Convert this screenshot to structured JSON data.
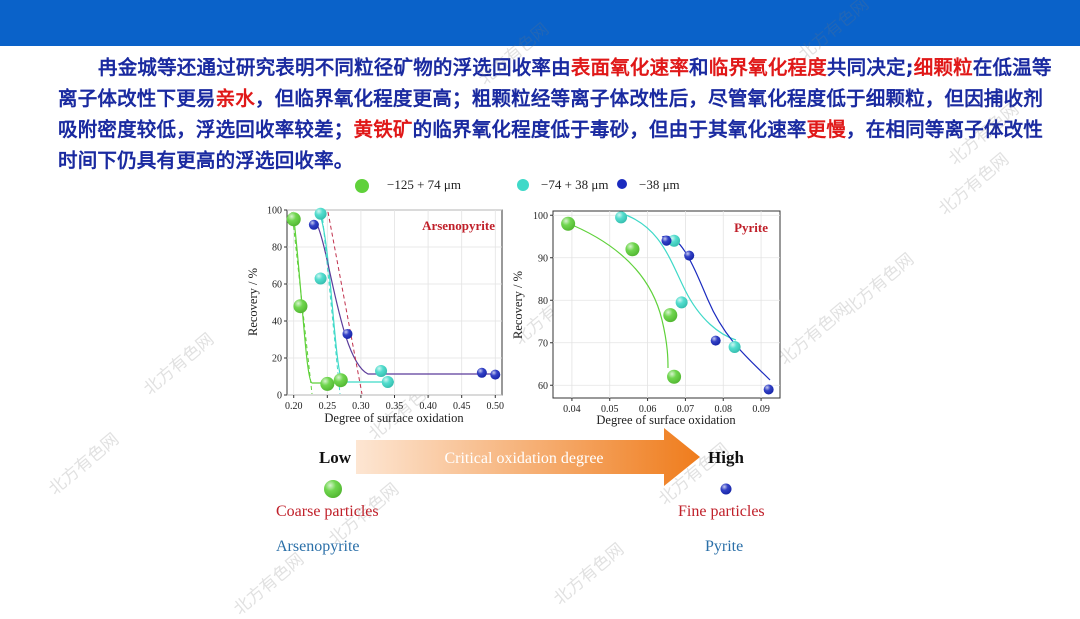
{
  "header": {
    "bar_color": "#0a62c9"
  },
  "paragraph": {
    "p1": "冉金城等还通过研究表明不同粒径矿物的浮选回收率由",
    "h1": "表面氧化速率",
    "p2": "和",
    "h2": "临界氧化程度",
    "p3": "共同决定;",
    "h3": "细颗粒",
    "p4": "在低温等离子体改性下更易",
    "h4": "亲水",
    "p5": "，但临界氧化程度更高；粗颗粒经等离子体改性后，尽管氧化程度低于细颗粒，但因捕收剂吸附密度较低，浮选回收率较差；",
    "h5": "黄铁矿",
    "p6": "的临界氧化程度低于毒砂，但由于其氧化速率",
    "h6": "更慢",
    "p7": "，在相同等离子体改性时间下仍具有更高的浮选回收率。"
  },
  "watermark": "北方有色网",
  "legend": {
    "items": [
      {
        "label": "−125 + 74 μm",
        "color": "#5fd13a"
      },
      {
        "label": "−74 + 38 μm",
        "color": "#3fd9c8"
      },
      {
        "label": "−38 μm",
        "color": "#1b2bbf"
      }
    ]
  },
  "chart_data": [
    {
      "type": "scatter",
      "title": "Arsenopyrite",
      "xlabel": "Degree of surface oxidation",
      "ylabel": "Recovery / %",
      "xlim": [
        0.19,
        0.51
      ],
      "ylim": [
        0,
        100
      ],
      "xticks": [
        "0.20",
        "0.25",
        "0.30",
        "0.35",
        "0.40",
        "0.45",
        "0.50"
      ],
      "yticks": [
        "0",
        "20",
        "40",
        "60",
        "80",
        "100"
      ],
      "series": [
        {
          "name": "−125 + 74 μm",
          "color": "#5fd13a",
          "x": [
            0.2,
            0.21,
            0.25,
            0.27
          ],
          "y": [
            95,
            48,
            6,
            8
          ]
        },
        {
          "name": "−74 + 38 μm",
          "color": "#3fd9c8",
          "x": [
            0.24,
            0.24,
            0.33,
            0.34
          ],
          "y": [
            98,
            63,
            13,
            7
          ]
        },
        {
          "name": "−38 μm",
          "color": "#1b2bbf",
          "x": [
            0.23,
            0.28,
            0.48,
            0.5
          ],
          "y": [
            92,
            33,
            12,
            11
          ]
        }
      ]
    },
    {
      "type": "scatter",
      "title": "Pyrite",
      "xlabel": "Degree of surface oxidation",
      "ylabel": "Recovery / %",
      "xlim": [
        0.035,
        0.095
      ],
      "ylim": [
        57,
        101
      ],
      "xticks": [
        "0.04",
        "0.05",
        "0.06",
        "0.07",
        "0.08",
        "0.09"
      ],
      "yticks": [
        "60",
        "70",
        "80",
        "90",
        "100"
      ],
      "series": [
        {
          "name": "−125 + 74 μm",
          "color": "#5fd13a",
          "x": [
            0.039,
            0.056,
            0.066,
            0.067
          ],
          "y": [
            98,
            92,
            76.5,
            62
          ]
        },
        {
          "name": "−74 + 38 μm",
          "color": "#3fd9c8",
          "x": [
            0.053,
            0.067,
            0.069,
            0.083
          ],
          "y": [
            99.5,
            94,
            79.5,
            69
          ]
        },
        {
          "name": "−38 μm",
          "color": "#1b2bbf",
          "x": [
            0.065,
            0.071,
            0.078,
            0.092
          ],
          "y": [
            94,
            90.5,
            70.5,
            59
          ]
        }
      ]
    }
  ],
  "arrow": {
    "low": "Low",
    "high": "High",
    "label": "Critical oxidation degree",
    "color_start": "#fde6d3",
    "color_end": "#ef7c1c"
  },
  "bottom": {
    "coarse": "Coarse particles",
    "fine": "Fine particles",
    "arsenopyrite": "Arsenopyrite",
    "pyrite": "Pyrite",
    "label_red": "#c0202a",
    "label_blue": "#2a6fa8"
  }
}
